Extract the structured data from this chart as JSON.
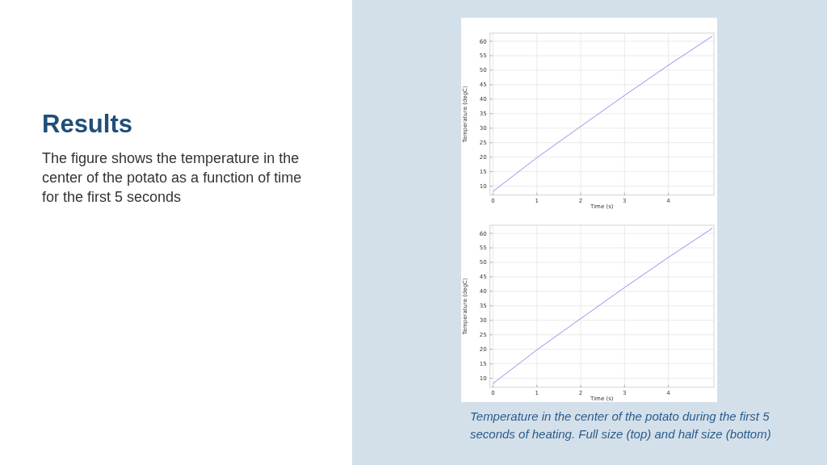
{
  "chart_data": [
    {
      "type": "other",
      "title": "Results",
      "subtitle": "The figure shows the temperature in the center of the potato as a function of time for the first 5 seconds"
    },
    {
      "type": "line",
      "x": [
        0,
        1,
        2,
        3,
        4,
        5
      ],
      "series": [
        {
          "color": "#8f8fef",
          "values": [
            8.2,
            19.8,
            30.6,
            41.3,
            51.7,
            61.7
          ]
        }
      ],
      "xlabel": "Time (s)",
      "ylabel": "Temperature (degC)",
      "xlim": [
        -0.07,
        5.04
      ],
      "ylim": [
        6.9,
        62.8
      ],
      "xticks": [
        0,
        1,
        2,
        3,
        4
      ],
      "yticks": [
        10,
        15,
        20,
        25,
        30,
        35,
        40,
        45,
        50,
        55,
        60
      ],
      "grid": true
    },
    {
      "type": "line",
      "x": [
        0,
        1,
        2,
        3,
        4,
        5
      ],
      "series": [
        {
          "color": "#8f8fef",
          "values": [
            8.2,
            19.8,
            30.6,
            41.3,
            51.7,
            61.7
          ]
        }
      ],
      "xlabel": "Time (s)",
      "ylabel": "Temperature (degC)",
      "xlim": [
        -0.07,
        5.04
      ],
      "ylim": [
        6.9,
        62.8
      ],
      "xticks": [
        0,
        1,
        2,
        3,
        4
      ],
      "yticks": [
        10,
        15,
        20,
        25,
        30,
        35,
        40,
        45,
        50,
        55,
        60
      ],
      "grid": true,
      "annotations": [
        "Temperature in the center of the potato during the first 5 seconds of heating. Full size (top) and half size (bottom)"
      ]
    }
  ]
}
